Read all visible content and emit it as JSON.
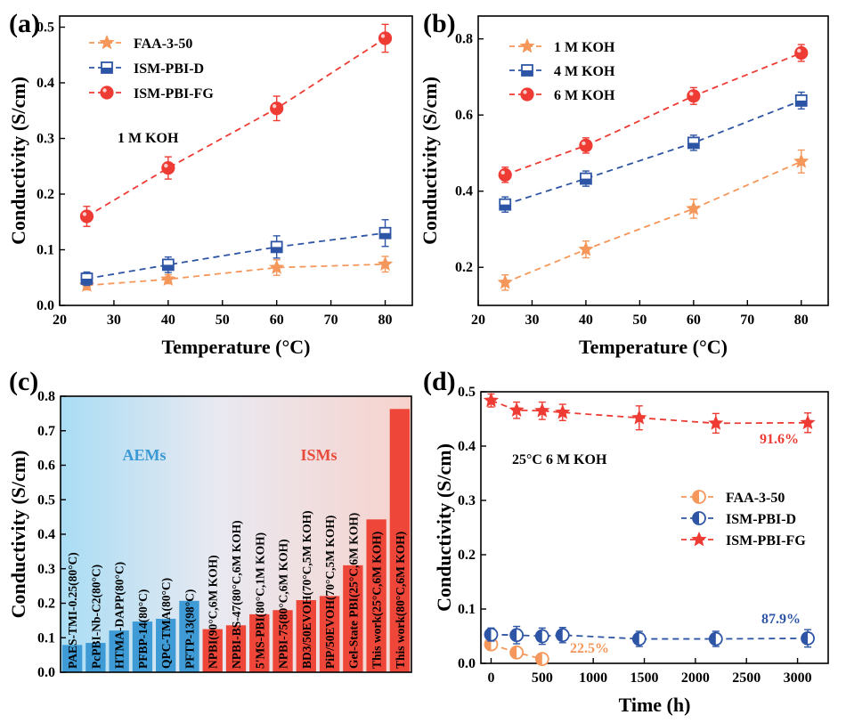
{
  "colors": {
    "orange": "#F5975A",
    "blue": "#2E55A5",
    "red": "#EE3B33",
    "bar_blue": "#3E9BD6",
    "bar_red": "#EE4638",
    "aems_text": "#3A98D4",
    "isms_text": "#E84A3C"
  },
  "chart_data": [
    {
      "id": "a",
      "panel_label": "(a)",
      "type": "line",
      "xlabel": "Temperature (°C)",
      "ylabel": "Conductivity (S/cm)",
      "xlim": [
        20,
        85
      ],
      "ylim": [
        0,
        0.52
      ],
      "xticks": [
        "20",
        "30",
        "40",
        "50",
        "60",
        "70",
        "80"
      ],
      "yticks": [
        "0.0",
        "0.1",
        "0.2",
        "0.3",
        "0.4",
        "0.5"
      ],
      "annotation": "1 M KOH",
      "legend_position": "top-left",
      "x": [
        25,
        40,
        60,
        80
      ],
      "series": [
        {
          "name": "FAA-3-50",
          "marker": "star",
          "color": "#F5975A",
          "values": [
            0.036,
            0.047,
            0.068,
            0.074
          ],
          "err": [
            0.008,
            0.008,
            0.014,
            0.014
          ]
        },
        {
          "name": "ISM-PBI-D",
          "marker": "half-square",
          "color": "#2E55A5",
          "values": [
            0.048,
            0.073,
            0.105,
            0.13
          ],
          "err": [
            0.012,
            0.014,
            0.02,
            0.024
          ]
        },
        {
          "name": "ISM-PBI-FG",
          "marker": "circle",
          "color": "#EE3B33",
          "values": [
            0.16,
            0.247,
            0.354,
            0.48
          ],
          "err": [
            0.018,
            0.02,
            0.022,
            0.025
          ]
        }
      ]
    },
    {
      "id": "b",
      "panel_label": "(b)",
      "type": "line",
      "xlabel": "Temperature (°C)",
      "ylabel": "Conductivity (S/cm)",
      "xlim": [
        20,
        85
      ],
      "ylim": [
        0.1,
        0.86
      ],
      "xticks": [
        "20",
        "30",
        "40",
        "50",
        "60",
        "70",
        "80"
      ],
      "yticks": [
        "0.2",
        "0.4",
        "0.6",
        "0.8"
      ],
      "legend_position": "top-left",
      "x": [
        25,
        40,
        60,
        80
      ],
      "series": [
        {
          "name": "1 M KOH",
          "marker": "star",
          "color": "#F5975A",
          "values": [
            0.16,
            0.247,
            0.354,
            0.478
          ],
          "err": [
            0.02,
            0.022,
            0.025,
            0.03
          ]
        },
        {
          "name": "4 M KOH",
          "marker": "half-square",
          "color": "#2E55A5",
          "values": [
            0.365,
            0.433,
            0.527,
            0.638
          ],
          "err": [
            0.02,
            0.02,
            0.02,
            0.022
          ]
        },
        {
          "name": "6 M KOH",
          "marker": "circle",
          "color": "#EE3B33",
          "values": [
            0.443,
            0.52,
            0.65,
            0.763
          ],
          "err": [
            0.02,
            0.02,
            0.022,
            0.022
          ]
        }
      ]
    },
    {
      "id": "c",
      "panel_label": "(c)",
      "type": "bar",
      "ylabel": "Conductivity (S/cm)",
      "ylim": [
        0,
        0.8
      ],
      "yticks": [
        "0.0",
        "0.1",
        "0.2",
        "0.3",
        "0.4",
        "0.5",
        "0.6",
        "0.7",
        "0.8"
      ],
      "group_labels": [
        "AEMs",
        "ISMs"
      ],
      "categories": [
        "PAES-TMI-0.25(80°C)",
        "PcPBI-Nb-C2(80°C)",
        "HTMA-DAPP(80°C)",
        "PFBP-14(80°C)",
        "QPC-TMA(80°C)",
        "PFTP-13(98°C)",
        "NPBI(90°C,6M KOH)",
        "NPBI-BS-47(80°C,6M KOH)",
        "5'MS-PBI(80°C,1M KOH)",
        "NPBI-75(80°C,6M KOH)",
        "BD3/50EVOH(70°C,5M KOH)",
        "PiP/50EVOH(70°C,5M KOH)",
        "Gel-State PBI(25°C,6M KOH)",
        "This work(25°C,6M KOH)",
        "This work(80°C,6M KOH)"
      ],
      "values": [
        0.079,
        0.085,
        0.121,
        0.147,
        0.155,
        0.207,
        0.125,
        0.136,
        0.168,
        0.18,
        0.209,
        0.221,
        0.31,
        0.443,
        0.763
      ],
      "groups": [
        "AEMs",
        "AEMs",
        "AEMs",
        "AEMs",
        "AEMs",
        "AEMs",
        "ISMs",
        "ISMs",
        "ISMs",
        "ISMs",
        "ISMs",
        "ISMs",
        "ISMs",
        "ISMs",
        "ISMs"
      ]
    },
    {
      "id": "d",
      "panel_label": "(d)",
      "type": "line",
      "xlabel": "Time (h)",
      "ylabel": "Conductivity (S/cm)",
      "xlim": [
        -100,
        3300
      ],
      "ylim": [
        0,
        0.5
      ],
      "xticks": [
        "0",
        "500",
        "1000",
        "1500",
        "2000",
        "2500",
        "3000"
      ],
      "yticks": [
        "0.0",
        "0.1",
        "0.2",
        "0.3",
        "0.4",
        "0.5"
      ],
      "annotation": "25°C 6 M KOH",
      "legend_position": "center-right",
      "retention_labels": [
        "22.5%",
        "87.9%",
        "91.6%"
      ],
      "series": [
        {
          "name": "FAA-3-50",
          "marker": "circle-half",
          "color": "#F5975A",
          "x": [
            0,
            250,
            500
          ],
          "values": [
            0.035,
            0.02,
            0.008
          ],
          "err": [
            0.01,
            0.01,
            0.006
          ]
        },
        {
          "name": "ISM-PBI-D",
          "marker": "circle-half",
          "color": "#2E55A5",
          "x": [
            0,
            250,
            500,
            700,
            1450,
            2200,
            3100
          ],
          "values": [
            0.053,
            0.052,
            0.05,
            0.052,
            0.045,
            0.045,
            0.046
          ],
          "err": [
            0.012,
            0.016,
            0.015,
            0.014,
            0.014,
            0.014,
            0.016
          ]
        },
        {
          "name": "ISM-PBI-FG",
          "marker": "star",
          "color": "#EE3B33",
          "x": [
            0,
            250,
            500,
            700,
            1450,
            2200,
            3100
          ],
          "values": [
            0.484,
            0.466,
            0.465,
            0.462,
            0.452,
            0.442,
            0.443
          ],
          "err": [
            0.012,
            0.015,
            0.016,
            0.015,
            0.022,
            0.018,
            0.018
          ]
        }
      ]
    }
  ]
}
